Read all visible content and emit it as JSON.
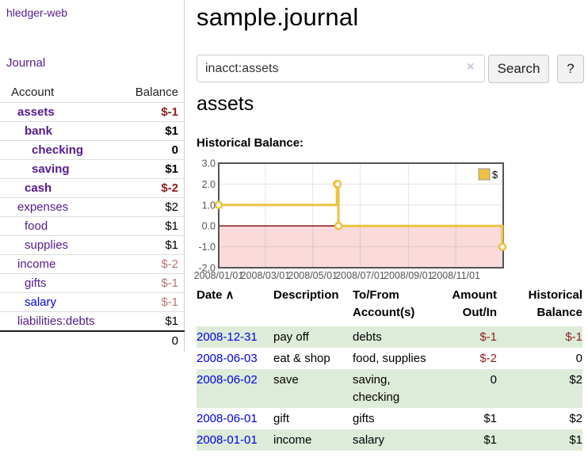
{
  "colors": {
    "link_visited": "#551a8b",
    "link_unvisited": "#0000e6",
    "negative_strong": "#8f1d1d",
    "negative_soft": "#bf7272",
    "row_highlight_green": "#ddecd9"
  },
  "sidebar": {
    "brand": "hledger-web",
    "journal_link": "Journal",
    "accounts": {
      "headers": {
        "account": "Account",
        "balance": "Balance"
      },
      "rows": [
        {
          "account": "assets",
          "balance": "$-1"
        },
        {
          "account": "bank",
          "balance": "$1"
        },
        {
          "account": "checking",
          "balance": "0"
        },
        {
          "account": "saving",
          "balance": "$1"
        },
        {
          "account": "cash",
          "balance": "$-2"
        },
        {
          "account": "expenses",
          "balance": "$2"
        },
        {
          "account": "food",
          "balance": "$1"
        },
        {
          "account": "supplies",
          "balance": "$1"
        },
        {
          "account": "income",
          "balance": "$-2"
        },
        {
          "account": "gifts",
          "balance": "$-1"
        },
        {
          "account": "salary",
          "balance": "$-1"
        },
        {
          "account": "liabilities:debts",
          "balance": "$1"
        }
      ],
      "total": "0"
    }
  },
  "main": {
    "title": "sample.journal",
    "search": {
      "value": "inacct:assets",
      "clear_icon": "×",
      "search_button": "Search",
      "help_button": "?"
    },
    "account_heading": "assets",
    "register": {
      "headers": {
        "date": "Date",
        "sort_icon": "∧",
        "description": "Description",
        "to_from": "To/From Account(s)",
        "amount": "Amount Out/In",
        "balance": "Historical Balance"
      },
      "rows": [
        {
          "date": "2008-12-31",
          "description": "pay off",
          "to_from": "debts",
          "amount": "$-1",
          "balance": "$-1"
        },
        {
          "date": "2008-06-03",
          "description": "eat & shop",
          "to_from": "food, supplies",
          "amount": "$-2",
          "balance": "0"
        },
        {
          "date": "2008-06-02",
          "description": "save",
          "to_from": "saving,\nchecking",
          "amount": "0",
          "balance": "$2"
        },
        {
          "date": "2008-06-01",
          "description": "gift",
          "to_from": "gifts",
          "amount": "$1",
          "balance": "$2"
        },
        {
          "date": "2008-01-01",
          "description": "income",
          "to_from": "salary",
          "amount": "$1",
          "balance": "$1"
        }
      ]
    }
  },
  "chart_data": {
    "type": "line",
    "title": "Historical Balance:",
    "series": [
      {
        "name": "$",
        "points": [
          [
            "2008-01-01",
            1
          ],
          [
            "2008-06-01",
            2
          ],
          [
            "2008-06-02",
            2
          ],
          [
            "2008-06-03",
            0
          ],
          [
            "2008-12-31",
            -1
          ]
        ]
      }
    ],
    "step": true,
    "xlim": [
      "2008-01-01",
      "2009-01-01"
    ],
    "ylim": [
      -2,
      3
    ],
    "y_ticks": [
      3,
      2,
      1,
      0,
      -1,
      -2
    ],
    "x_ticks": [
      {
        "date": "2008-01-01",
        "label": "2008/01/01"
      },
      {
        "date": "2008-03-01",
        "label": "2008/03/01"
      },
      {
        "date": "2008-05-01",
        "label": "2008/05/01"
      },
      {
        "date": "2008-07-01",
        "label": "2008/07/01"
      },
      {
        "date": "2008-09-01",
        "label": "2008/09/01"
      },
      {
        "date": "2008-11-01",
        "label": "2008/11/01"
      }
    ],
    "legend": {
      "position": "top-right",
      "label": "$"
    },
    "grid": true,
    "colors": {
      "series": "#edc240",
      "zero_line": "#7f0000",
      "negative_region": "#fadada",
      "border": "#545454",
      "tick_text": "#545454"
    }
  }
}
